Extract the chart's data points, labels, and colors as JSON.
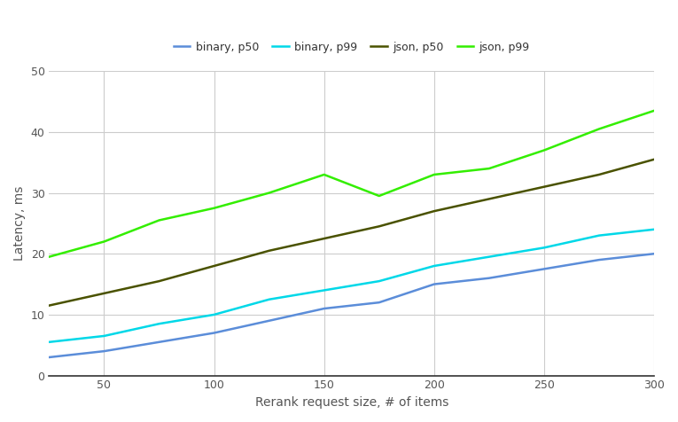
{
  "x": [
    25,
    50,
    75,
    100,
    125,
    150,
    175,
    200,
    225,
    250,
    275,
    300
  ],
  "binary_p50": [
    3.0,
    4.0,
    5.5,
    7.0,
    9.0,
    11.0,
    12.0,
    15.0,
    16.0,
    17.5,
    19.0,
    20.0
  ],
  "binary_p99": [
    5.5,
    6.5,
    8.5,
    10.0,
    12.5,
    14.0,
    15.5,
    18.0,
    19.5,
    21.0,
    23.0,
    24.0
  ],
  "json_p50": [
    11.5,
    13.5,
    15.5,
    18.0,
    20.5,
    22.5,
    24.5,
    27.0,
    29.0,
    31.0,
    33.0,
    35.5
  ],
  "json_p99": [
    19.5,
    22.0,
    25.5,
    27.5,
    30.0,
    33.0,
    29.5,
    33.0,
    34.0,
    37.0,
    40.5,
    43.5
  ],
  "colors": {
    "binary_p50": "#5b8dd9",
    "binary_p99": "#00d8e8",
    "json_p50": "#4a5200",
    "json_p99": "#33ee00"
  },
  "labels": {
    "binary_p50": "binary, p50",
    "binary_p99": "binary, p99",
    "json_p50": "json, p50",
    "json_p99": "json, p99"
  },
  "xlabel": "Rerank request size, # of items",
  "ylabel": "Latency, ms",
  "xlim": [
    25,
    300
  ],
  "ylim": [
    0,
    50
  ],
  "xticks": [
    50,
    100,
    150,
    200,
    250,
    300
  ],
  "yticks": [
    0,
    10,
    20,
    30,
    40,
    50
  ],
  "background_color": "#ffffff",
  "fig_background_color": "#ffffff",
  "grid_color": "#cccccc",
  "linewidth": 1.8,
  "legend_fontsize": 9,
  "axis_label_fontsize": 10,
  "tick_fontsize": 9
}
